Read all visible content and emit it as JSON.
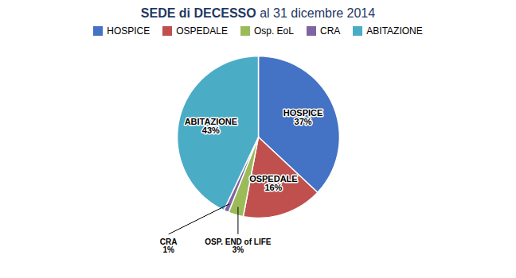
{
  "chart_data": {
    "type": "pie",
    "title": "SEDE di DECESSO",
    "subtitle": "al 31 dicembre 2014",
    "categories": [
      "HOSPICE",
      "OSPEDALE",
      "Osp. EoL",
      "CRA",
      "ABITAZIONE"
    ],
    "values": [
      37,
      16,
      3,
      1,
      43
    ],
    "colors": [
      "#4472C4",
      "#C0504D",
      "#9BBB59",
      "#8064A2",
      "#4BACC6"
    ],
    "data_labels": true,
    "value_labels": [
      "HOSPICE\n37%",
      "OSPEDALE\n16%",
      "OSP. END of LIFE\n3%",
      "CRA\n1%",
      "ABITAZIONE\n43%"
    ],
    "legend": "top"
  }
}
